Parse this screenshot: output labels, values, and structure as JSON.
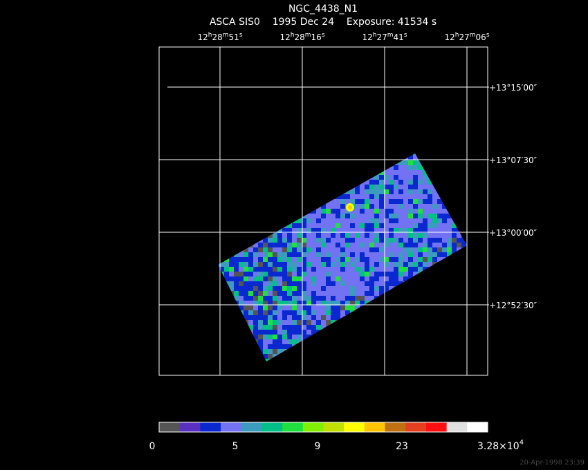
{
  "title": "NGC_4438_N1",
  "subtitle": "ASCA SIS0    1995 Dec 24    Exposure: 41534 s",
  "ra_labels": [
    [
      "12",
      "h",
      "28",
      "m",
      "51",
      "s"
    ],
    [
      "12",
      "h",
      "28",
      "m",
      "16",
      "s"
    ],
    [
      "12",
      "h",
      "27",
      "m",
      "41",
      "s"
    ],
    [
      "12",
      "h",
      "27",
      "m",
      "06",
      "s"
    ]
  ],
  "dec_labels": [
    "+13°15′00″",
    "+13°07′30″",
    "+13°00′00″",
    "+12°52′30″"
  ],
  "colorbar": {
    "colors": [
      "#555555",
      "#5a30c0",
      "#0a28d0",
      "#7272f2",
      "#3c9cc0",
      "#00c088",
      "#20e040",
      "#80f000",
      "#c0e000",
      "#ffff00",
      "#ffc400",
      "#c07010",
      "#e44020",
      "#ff1010",
      "#e0e0e0",
      "#ffffff"
    ],
    "labels": [
      "0",
      "5",
      "9",
      "23"
    ],
    "max_label": [
      "3.28×10",
      "4"
    ]
  },
  "timestamp": "20-Apr-1998 23:39"
}
